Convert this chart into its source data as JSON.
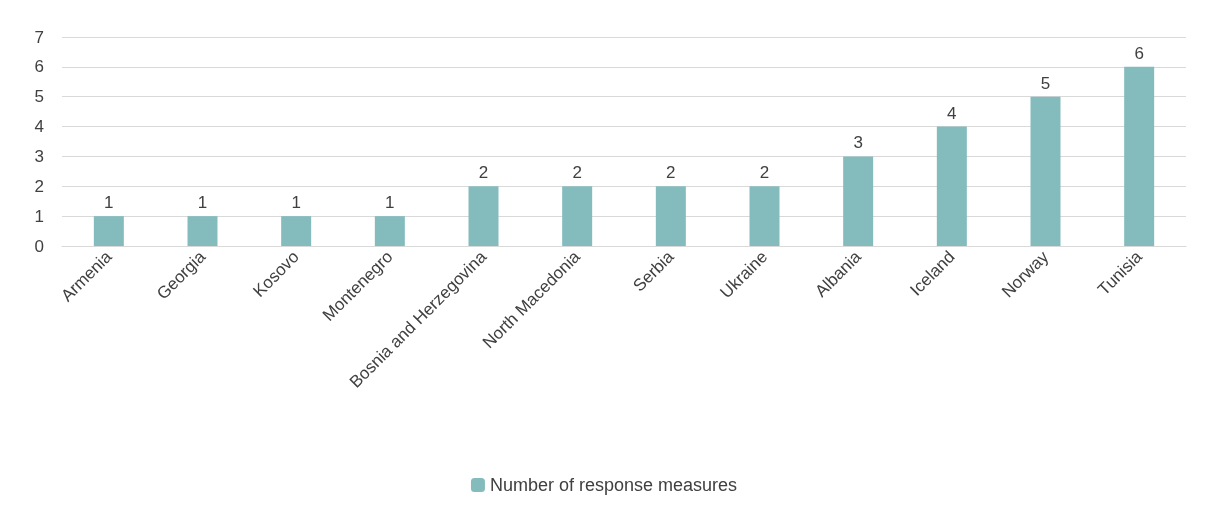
{
  "chart_data": {
    "type": "bar",
    "categories": [
      "Armenia",
      "Georgia",
      "Kosovo",
      "Montenegro",
      "Bosnia and Herzegovina",
      "North Macedonia",
      "Serbia",
      "Ukraine",
      "Albania",
      "Iceland",
      "Norway",
      "Tunisia"
    ],
    "series": [
      {
        "name": "Number of response measures",
        "color": "#84bcbe",
        "values": [
          1,
          1,
          1,
          1,
          2,
          2,
          2,
          2,
          3,
          4,
          5,
          6
        ]
      }
    ],
    "ylim": [
      0,
      7
    ],
    "yticks": [
      0,
      1,
      2,
      3,
      4,
      5,
      6,
      7
    ],
    "grid": "y",
    "legend": "bottom",
    "data_labels": true
  }
}
